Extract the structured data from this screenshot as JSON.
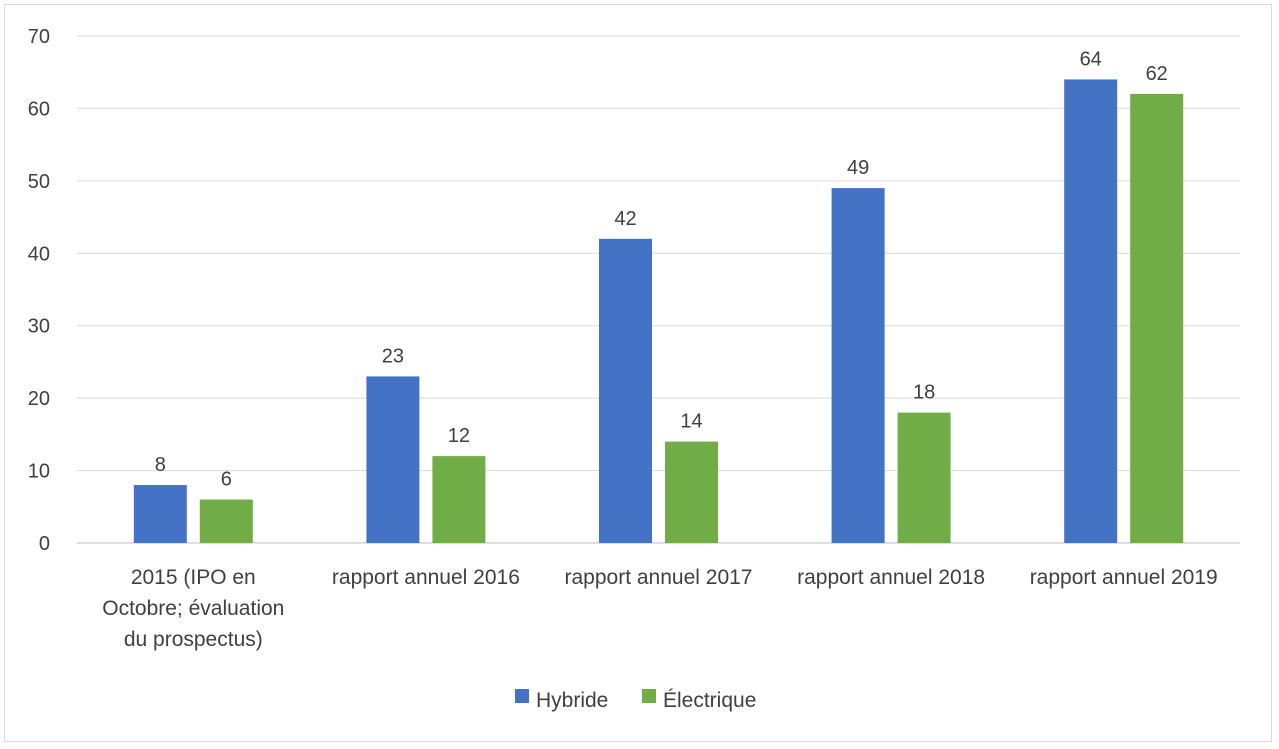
{
  "chart_data": {
    "type": "bar",
    "title": "",
    "xlabel": "",
    "ylabel": "",
    "ylim": [
      0,
      70
    ],
    "yticks": [
      0,
      10,
      20,
      30,
      40,
      50,
      60,
      70
    ],
    "grid": true,
    "legend_position": "bottom",
    "categories": [
      [
        "2015 (IPO en",
        "Octobre; évaluation",
        "du prospectus)"
      ],
      [
        "rapport annuel 2016"
      ],
      [
        "rapport annuel 2017"
      ],
      [
        "rapport annuel 2018"
      ],
      [
        "rapport annuel 2019"
      ]
    ],
    "series": [
      {
        "name": "Hybride",
        "color": "#4472c4",
        "values": [
          8,
          23,
          42,
          49,
          64
        ]
      },
      {
        "name": "Électrique",
        "color": "#70ad47",
        "values": [
          6,
          12,
          14,
          18,
          62
        ]
      }
    ]
  }
}
